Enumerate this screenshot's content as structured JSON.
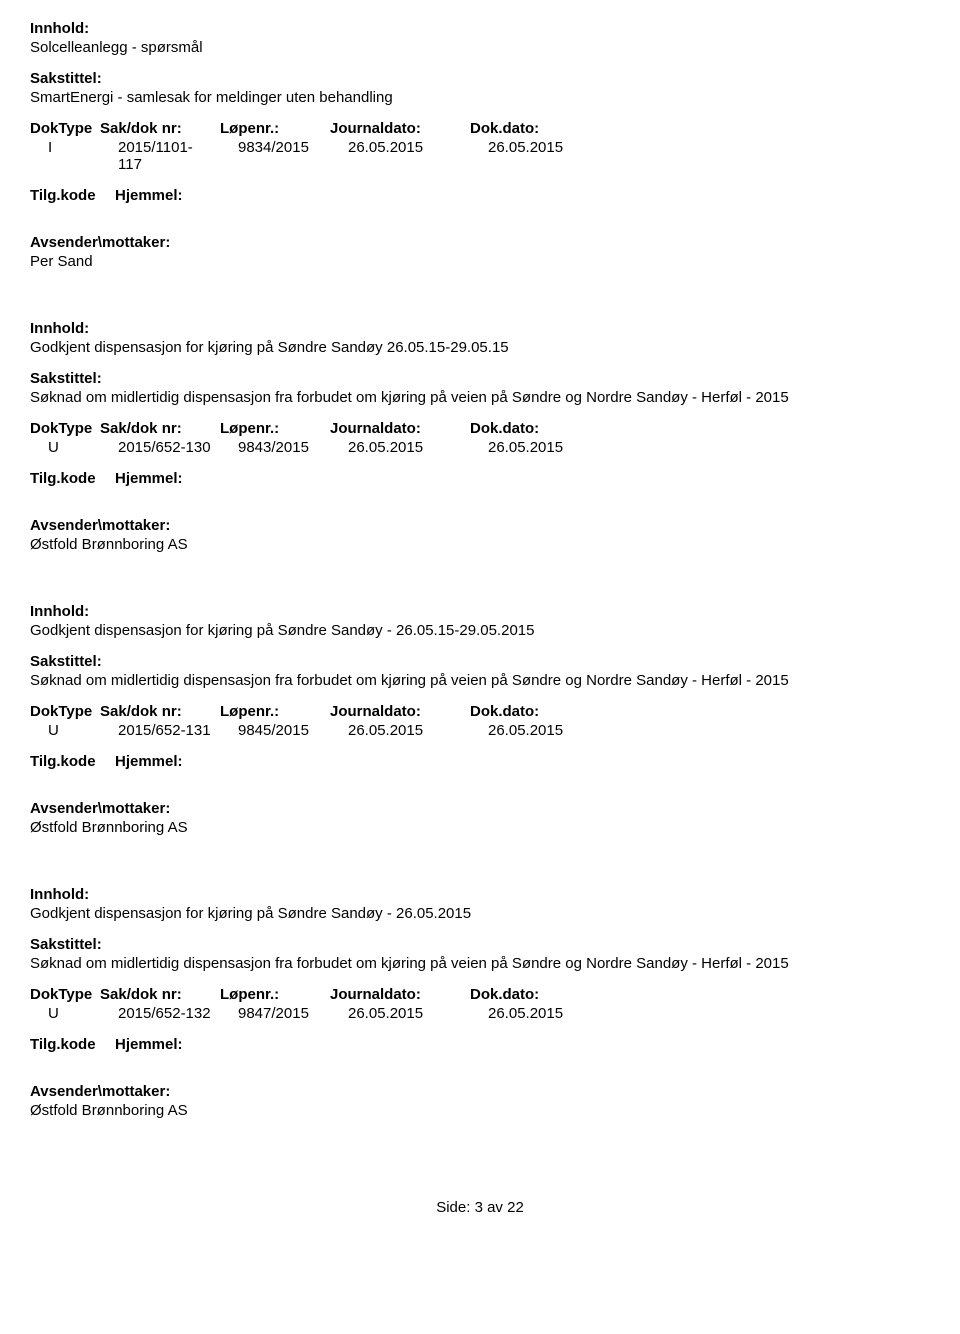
{
  "labels": {
    "innhold": "Innhold:",
    "sakstittel": "Sakstittel:",
    "doktype": "DokType",
    "sakdoknr": "Sak/dok nr:",
    "lopenr": "Løpenr.:",
    "journaldato": "Journaldato:",
    "dokdato": "Dok.dato:",
    "tilgkode": "Tilg.kode",
    "hjemmel": "Hjemmel:",
    "avsender": "Avsender\\mottaker:"
  },
  "entries": [
    {
      "innhold": "Solcelleanlegg - spørsmål",
      "sakstittel": "SmartEnergi - samlesak for meldinger uten behandling",
      "doktype": "I",
      "sakdoknr": "2015/1101-117",
      "lopenr": "9834/2015",
      "journaldato": "26.05.2015",
      "dokdato": "26.05.2015",
      "avsender": "Per Sand"
    },
    {
      "innhold": "Godkjent dispensasjon for kjøring på Søndre Sandøy 26.05.15-29.05.15",
      "sakstittel": "Søknad om midlertidig dispensasjon fra forbudet om kjøring på veien på Søndre og Nordre Sandøy - Herføl - 2015",
      "doktype": "U",
      "sakdoknr": "2015/652-130",
      "lopenr": "9843/2015",
      "journaldato": "26.05.2015",
      "dokdato": "26.05.2015",
      "avsender": "Østfold Brønnboring AS"
    },
    {
      "innhold": "Godkjent dispensasjon for kjøring på Søndre Sandøy - 26.05.15-29.05.2015",
      "sakstittel": "Søknad om midlertidig dispensasjon fra forbudet om kjøring på veien på Søndre og Nordre Sandøy - Herføl - 2015",
      "doktype": "U",
      "sakdoknr": "2015/652-131",
      "lopenr": "9845/2015",
      "journaldato": "26.05.2015",
      "dokdato": "26.05.2015",
      "avsender": "Østfold Brønnboring AS"
    },
    {
      "innhold": "Godkjent dispensasjon for kjøring på Søndre Sandøy - 26.05.2015",
      "sakstittel": "Søknad om midlertidig dispensasjon fra forbudet om kjøring på veien på Søndre og Nordre Sandøy - Herføl - 2015",
      "doktype": "U",
      "sakdoknr": "2015/652-132",
      "lopenr": "9847/2015",
      "journaldato": "26.05.2015",
      "dokdato": "26.05.2015",
      "avsender": "Østfold Brønnboring AS"
    }
  ],
  "footer": "Side: 3 av 22"
}
